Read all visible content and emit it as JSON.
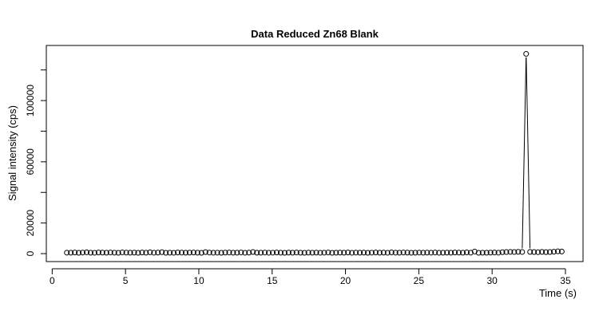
{
  "chart_data": {
    "type": "line-points",
    "title": "Data Reduced Zn68 Blank",
    "x_label": "Time (s)",
    "y_label": "Signal intensity (cps)",
    "color": "#000000",
    "x": [
      1.0,
      1.27,
      1.54,
      1.81,
      2.08,
      2.35,
      2.62,
      2.89,
      3.16,
      3.43,
      3.7,
      3.97,
      4.24,
      4.51,
      4.78,
      5.05,
      5.32,
      5.59,
      5.86,
      6.13,
      6.4,
      6.67,
      6.94,
      7.21,
      7.48,
      7.75,
      8.02,
      8.29,
      8.56,
      8.83,
      9.1,
      9.37,
      9.64,
      9.91,
      10.18,
      10.45,
      10.72,
      10.99,
      11.26,
      11.53,
      11.8,
      12.07,
      12.34,
      12.61,
      12.88,
      13.15,
      13.42,
      13.69,
      13.96,
      14.23,
      14.5,
      14.77,
      15.04,
      15.31,
      15.58,
      15.85,
      16.12,
      16.39,
      16.66,
      16.93,
      17.2,
      17.47,
      17.74,
      18.01,
      18.28,
      18.55,
      18.82,
      19.09,
      19.36,
      19.63,
      19.9,
      20.17,
      20.44,
      20.71,
      20.98,
      21.25,
      21.52,
      21.79,
      22.06,
      22.33,
      22.6,
      22.87,
      23.14,
      23.41,
      23.68,
      23.95,
      24.22,
      24.49,
      24.76,
      25.03,
      25.3,
      25.57,
      25.84,
      26.11,
      26.38,
      26.65,
      26.92,
      27.19,
      27.46,
      27.73,
      28.0,
      28.27,
      28.54,
      28.81,
      29.08,
      29.35,
      29.62,
      29.89,
      30.16,
      30.43,
      30.7,
      30.97,
      31.24,
      31.51,
      31.78,
      32.05,
      32.32,
      32.59,
      32.86,
      33.13,
      33.4,
      33.67,
      33.94,
      34.21,
      34.48,
      34.75
    ],
    "values": [
      620,
      580,
      710,
      540,
      690,
      830,
      600,
      560,
      740,
      650,
      580,
      700,
      620,
      530,
      760,
      640,
      590,
      680,
      550,
      720,
      610,
      870,
      570,
      650,
      930,
      540,
      600,
      560,
      710,
      630,
      580,
      650,
      740,
      600,
      520,
      980,
      690,
      570,
      620,
      540,
      660,
      700,
      590,
      610,
      750,
      560,
      640,
      1050,
      580,
      610,
      690,
      560,
      620,
      720,
      590,
      540,
      660,
      610,
      700,
      580,
      520,
      640,
      590,
      680,
      560,
      620,
      700,
      540,
      610,
      650,
      590,
      720,
      560,
      630,
      600,
      680,
      540,
      620,
      710,
      590,
      650,
      560,
      780,
      620,
      590,
      700,
      640,
      560,
      610,
      690,
      580,
      640,
      620,
      700,
      560,
      610,
      660,
      590,
      730,
      640,
      600,
      780,
      620,
      1350,
      540,
      610,
      590,
      660,
      700,
      620,
      910,
      1020,
      1150,
      1080,
      1200,
      1080,
      130500,
      1100,
      1040,
      950,
      1120,
      980,
      1060,
      1250,
      1480,
      1380
    ],
    "xlim": [
      -0.4,
      36.2
    ],
    "ylim": [
      -5200,
      136000
    ],
    "xticks": [
      0,
      5,
      10,
      15,
      20,
      25,
      30,
      35
    ],
    "yticks": [
      0,
      20000,
      {
        "value": 40000,
        "label": null
      },
      60000,
      {
        "value": 80000,
        "label": null
      },
      100000,
      {
        "value": 120000,
        "label": null
      }
    ]
  }
}
